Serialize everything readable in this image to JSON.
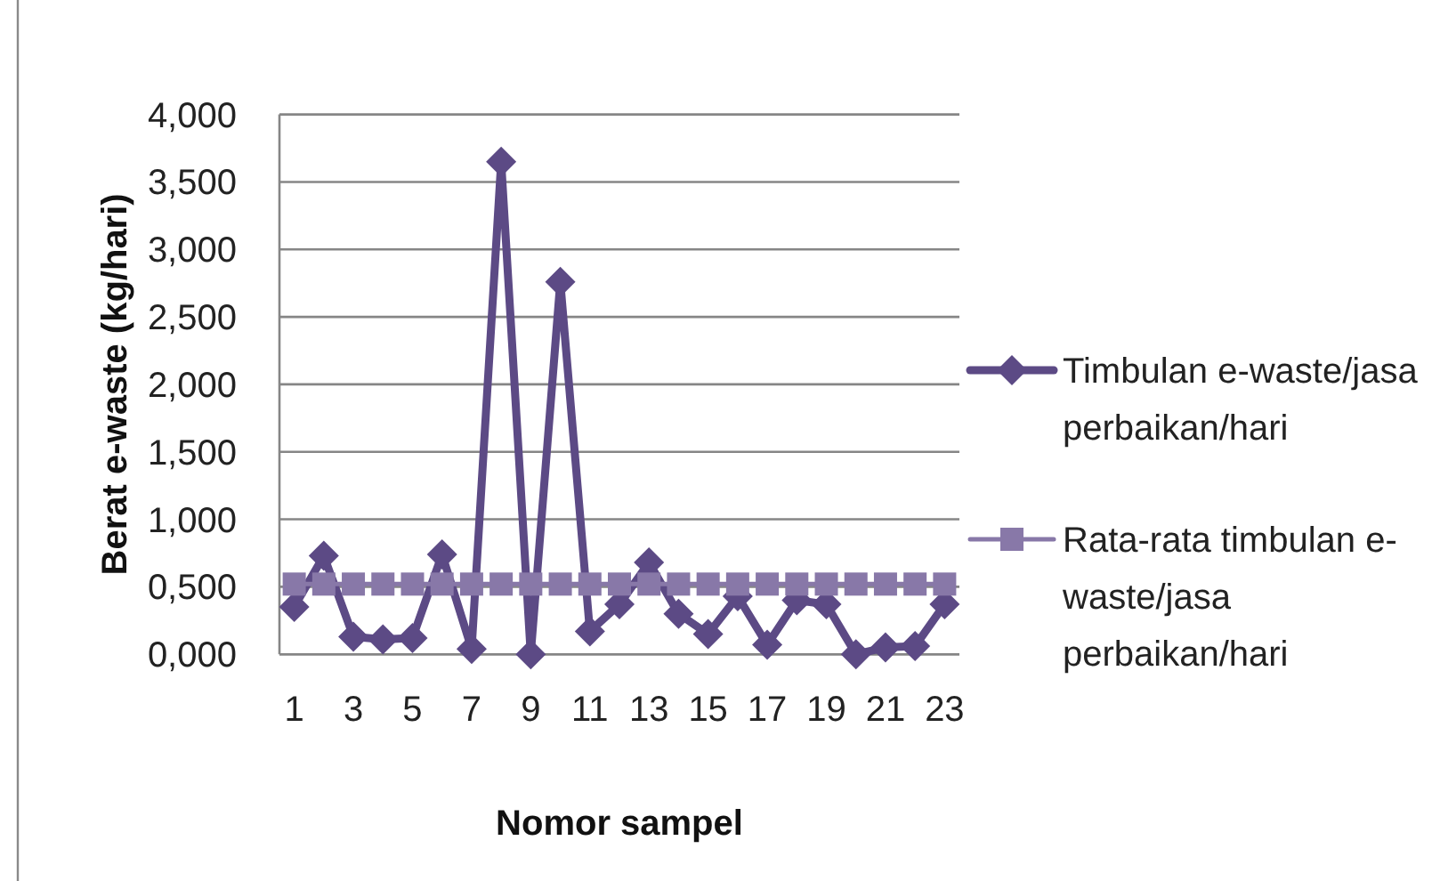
{
  "chart_data": {
    "type": "line",
    "xlabel": "Nomor sampel",
    "ylabel": "Berat e-waste (kg/hari)",
    "x": [
      1,
      2,
      3,
      4,
      5,
      6,
      7,
      8,
      9,
      10,
      11,
      12,
      13,
      14,
      15,
      16,
      17,
      18,
      19,
      20,
      21,
      22,
      23
    ],
    "xlim": [
      0.5,
      23.5
    ],
    "xticks": [
      1,
      3,
      5,
      7,
      9,
      11,
      13,
      15,
      17,
      19,
      21,
      23
    ],
    "ylim": [
      0,
      4
    ],
    "yticks": [
      {
        "value": 0,
        "label": "0,000"
      },
      {
        "value": 0.5,
        "label": "0,500"
      },
      {
        "value": 1,
        "label": "1,000"
      },
      {
        "value": 1.5,
        "label": "1,500"
      },
      {
        "value": 2,
        "label": "2,000"
      },
      {
        "value": 2.5,
        "label": "2,500"
      },
      {
        "value": 3,
        "label": "3,000"
      },
      {
        "value": 3.5,
        "label": "3,500"
      },
      {
        "value": 4,
        "label": "4,000"
      }
    ],
    "grid": "y",
    "legend": "right",
    "series": [
      {
        "name": "Timbulan e-waste/jasa perbaikan/hari",
        "color": "#5c4a85",
        "marker": "diamond",
        "values": [
          0.35,
          0.73,
          0.13,
          0.11,
          0.12,
          0.74,
          0.04,
          3.65,
          0,
          2.76,
          0.17,
          0.37,
          0.68,
          0.3,
          0.15,
          0.43,
          0.07,
          0.4,
          0.37,
          0,
          0.05,
          0.06,
          0.37
        ]
      },
      {
        "name": "Rata-rata timbulan e-waste/jasa perbaikan/hari",
        "color": "#8878a8",
        "marker": "square",
        "values": [
          0.52,
          0.52,
          0.52,
          0.52,
          0.52,
          0.52,
          0.52,
          0.52,
          0.52,
          0.52,
          0.52,
          0.52,
          0.52,
          0.52,
          0.52,
          0.52,
          0.52,
          0.52,
          0.52,
          0.52,
          0.52,
          0.52,
          0.52
        ]
      }
    ]
  }
}
